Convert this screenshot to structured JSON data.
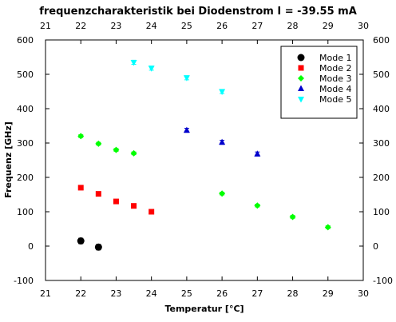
{
  "chart_data": {
    "type": "scatter",
    "title": "frequenzcharakteristik bei Diodenstrom I = -39.55 mA",
    "xlabel": "Temperatur [°C]",
    "ylabel": "Frequenz [GHz]",
    "xlim": [
      21,
      30
    ],
    "ylim": [
      -100,
      600
    ],
    "xticks": [
      "21",
      "22",
      "23",
      "24",
      "25",
      "26",
      "27",
      "28",
      "29",
      "30"
    ],
    "yticks": [
      "-100",
      "0",
      "100",
      "200",
      "300",
      "400",
      "500",
      "600"
    ],
    "grid": false,
    "legend_position": "top-right",
    "series": [
      {
        "name": "Mode 1",
        "marker": "circle",
        "color": "#000000",
        "points": [
          {
            "x": 22,
            "y": 15,
            "err": 8
          },
          {
            "x": 22.5,
            "y": -3,
            "err": 8
          }
        ]
      },
      {
        "name": "Mode 2",
        "marker": "square",
        "color": "#ff0000",
        "points": [
          {
            "x": 22,
            "y": 170,
            "err": 5
          },
          {
            "x": 22.5,
            "y": 152,
            "err": 5
          },
          {
            "x": 23,
            "y": 130,
            "err": 5
          },
          {
            "x": 23.5,
            "y": 117,
            "err": 5
          },
          {
            "x": 24,
            "y": 100,
            "err": 5
          }
        ]
      },
      {
        "name": "Mode 3",
        "marker": "diamond",
        "color": "#00ff00",
        "points": [
          {
            "x": 22,
            "y": 320,
            "err": 4
          },
          {
            "x": 22.5,
            "y": 298,
            "err": 4
          },
          {
            "x": 23,
            "y": 280,
            "err": 4
          },
          {
            "x": 23.5,
            "y": 270,
            "err": 4
          },
          {
            "x": 26,
            "y": 153,
            "err": 4
          },
          {
            "x": 27,
            "y": 118,
            "err": 4
          },
          {
            "x": 28,
            "y": 85,
            "err": 4
          },
          {
            "x": 29,
            "y": 55,
            "err": 4
          }
        ]
      },
      {
        "name": "Mode 4",
        "marker": "triangle-up",
        "color": "#0000cc",
        "points": [
          {
            "x": 25,
            "y": 337,
            "err": 6
          },
          {
            "x": 26,
            "y": 302,
            "err": 6
          },
          {
            "x": 27,
            "y": 268,
            "err": 6
          }
        ]
      },
      {
        "name": "Mode 5",
        "marker": "triangle-down",
        "color": "#00ffff",
        "points": [
          {
            "x": 23.5,
            "y": 535,
            "err": 6
          },
          {
            "x": 24,
            "y": 518,
            "err": 6
          },
          {
            "x": 25,
            "y": 490,
            "err": 6
          },
          {
            "x": 26,
            "y": 450,
            "err": 6
          }
        ]
      }
    ]
  }
}
